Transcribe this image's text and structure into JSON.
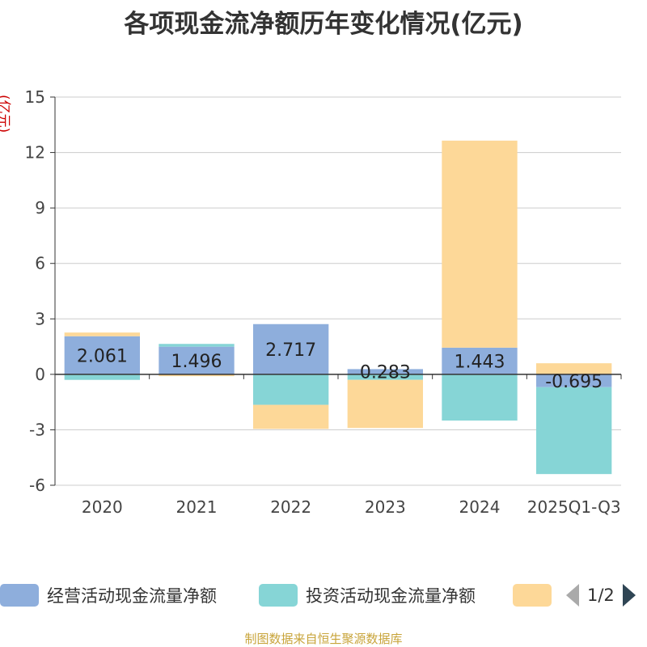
{
  "chart_data": {
    "type": "bar",
    "stacked": true,
    "title": "各项现金流净额历年变化情况(亿元)",
    "y_unit": "(亿元)",
    "categories": [
      "2020",
      "2021",
      "2022",
      "2023",
      "2024",
      "2025Q1-Q3"
    ],
    "ylim": [
      -6,
      15
    ],
    "yticks": [
      15,
      12,
      9,
      6,
      3,
      0,
      -3,
      -6
    ],
    "grid": true,
    "series": [
      {
        "name": "经营活动现金流量净额",
        "color": "#8eaedc",
        "values": [
          2.061,
          1.496,
          2.717,
          0.283,
          1.443,
          -0.695
        ],
        "labels": [
          "2.061",
          "1.496",
          "2.717",
          "0.283",
          "1.443",
          "-0.695"
        ]
      },
      {
        "name": "投资活动现金流量净额",
        "color": "#86d5d6",
        "values": [
          -0.3,
          0.15,
          -1.65,
          -0.3,
          -2.5,
          -4.7
        ]
      },
      {
        "name": "",
        "color": "#fdd898",
        "values": [
          0.2,
          -0.1,
          -1.3,
          -2.6,
          11.2,
          0.6
        ]
      }
    ],
    "legend_page": "1/2"
  },
  "source_note": "制图数据来自恒生聚源数据库"
}
